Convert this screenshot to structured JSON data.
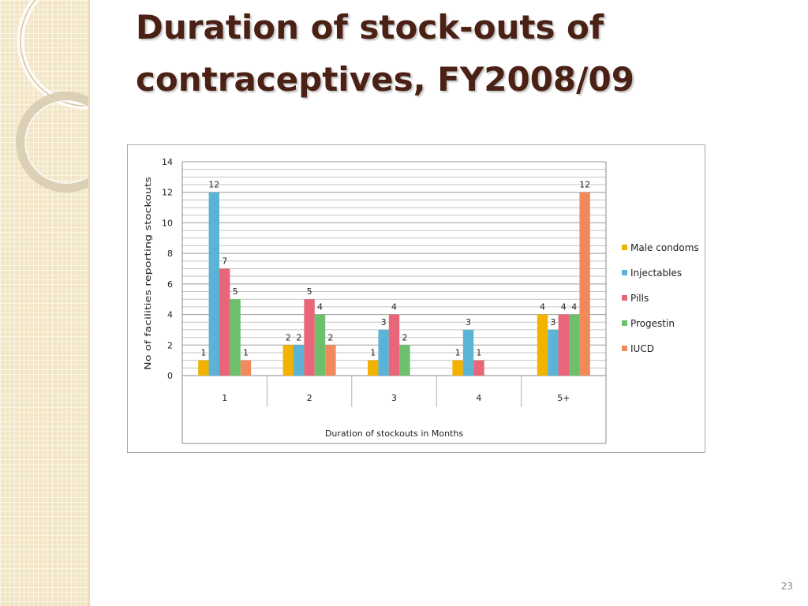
{
  "slide": {
    "title": "Duration of stock-outs of contraceptives, FY2008/09",
    "page_number": "23"
  },
  "theme": {
    "title_color": "#4a2114",
    "side_panel_color": "#f3e6c6"
  },
  "chart_data": {
    "type": "bar",
    "title": "",
    "xlabel": "Duration of stockouts in Months",
    "ylabel": "No of facilities reporting stockouts",
    "categories": [
      "1",
      "2",
      "3",
      "4",
      "5+"
    ],
    "ylim": [
      0,
      14
    ],
    "yticks": [
      0,
      2,
      4,
      6,
      8,
      10,
      12,
      14
    ],
    "grid": true,
    "legend_position": "right",
    "series": [
      {
        "name": "Male condoms",
        "color": "#f2b200",
        "values": [
          1,
          2,
          1,
          1,
          4
        ]
      },
      {
        "name": "Injectables",
        "color": "#5bb3d6",
        "values": [
          12,
          2,
          3,
          3,
          3
        ]
      },
      {
        "name": "Pills",
        "color": "#e8657a",
        "values": [
          7,
          5,
          4,
          1,
          4
        ]
      },
      {
        "name": "Progestin",
        "color": "#6cc06c",
        "values": [
          5,
          4,
          2,
          null,
          4
        ]
      },
      {
        "name": "IUCD",
        "color": "#f08a5a",
        "values": [
          1,
          2,
          null,
          null,
          12
        ]
      }
    ]
  }
}
